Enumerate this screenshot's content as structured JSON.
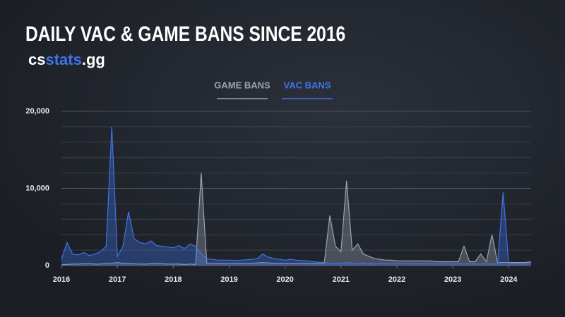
{
  "chart_data": {
    "type": "line",
    "title": "DAILY VAC & GAME BANS SINCE 2016",
    "brand": [
      "cs",
      "stats",
      ".gg"
    ],
    "x": [
      2016,
      2016.1,
      2016.2,
      2016.3,
      2016.4,
      2016.5,
      2016.6,
      2016.7,
      2016.8,
      2016.9,
      2017,
      2017.1,
      2017.2,
      2017.3,
      2017.4,
      2017.5,
      2017.6,
      2017.7,
      2017.8,
      2017.9,
      2018,
      2018.1,
      2018.2,
      2018.3,
      2018.4,
      2018.5,
      2018.6,
      2018.7,
      2018.8,
      2018.9,
      2019,
      2019.1,
      2019.2,
      2019.3,
      2019.4,
      2019.5,
      2019.6,
      2019.7,
      2019.8,
      2019.9,
      2020,
      2020.1,
      2020.2,
      2020.3,
      2020.4,
      2020.5,
      2020.6,
      2020.7,
      2020.8,
      2020.9,
      2021,
      2021.1,
      2021.2,
      2021.3,
      2021.4,
      2021.5,
      2021.6,
      2021.7,
      2021.8,
      2021.9,
      2022,
      2022.1,
      2022.2,
      2022.3,
      2022.4,
      2022.5,
      2022.6,
      2022.7,
      2022.8,
      2022.9,
      2023,
      2023.1,
      2023.2,
      2023.3,
      2023.4,
      2023.5,
      2023.6,
      2023.7,
      2023.8,
      2023.9,
      2024,
      2024.1,
      2024.2,
      2024.3,
      2024.4
    ],
    "series": [
      {
        "name": "GAME BANS",
        "color": "#9aa3b5",
        "values": [
          100,
          150,
          200,
          200,
          250,
          250,
          200,
          200,
          300,
          300,
          400,
          300,
          300,
          250,
          200,
          200,
          250,
          300,
          250,
          200,
          200,
          200,
          150,
          200,
          150,
          12000,
          300,
          300,
          300,
          300,
          300,
          300,
          300,
          300,
          300,
          350,
          400,
          350,
          300,
          300,
          300,
          300,
          300,
          300,
          300,
          300,
          300,
          300,
          6500,
          2500,
          1800,
          11000,
          2000,
          2800,
          1500,
          1200,
          900,
          800,
          700,
          700,
          600,
          600,
          600,
          600,
          600,
          600,
          600,
          500,
          500,
          500,
          500,
          500,
          2500,
          500,
          500,
          1500,
          500,
          4000,
          400,
          400,
          400,
          400,
          400,
          400,
          500
        ]
      },
      {
        "name": "VAC BANS",
        "color": "#3f74e8",
        "values": [
          800,
          3000,
          1500,
          1400,
          1700,
          1300,
          1500,
          1800,
          2500,
          18000,
          1200,
          2500,
          7000,
          3500,
          3000,
          2800,
          3200,
          2600,
          2500,
          2400,
          2300,
          2600,
          2200,
          2800,
          2500,
          1500,
          900,
          800,
          700,
          700,
          700,
          650,
          700,
          750,
          800,
          900,
          1500,
          1100,
          900,
          800,
          700,
          800,
          700,
          650,
          600,
          500,
          450,
          400,
          300,
          300,
          300,
          400,
          300,
          300,
          300,
          250,
          250,
          300,
          250,
          250,
          250,
          250,
          300,
          250,
          250,
          250,
          250,
          200,
          250,
          250,
          200,
          250,
          200,
          250,
          200,
          200,
          250,
          200,
          200,
          9500,
          200,
          250,
          200,
          200,
          300
        ]
      }
    ],
    "xlim": [
      2016,
      2024.4
    ],
    "xticks": [
      2016,
      2017,
      2018,
      2019,
      2020,
      2021,
      2022,
      2023,
      2024
    ],
    "ylim": [
      0,
      20000
    ],
    "yticks": [
      0,
      {
        "value": 10000,
        "label": "10,000"
      },
      {
        "value": 20000,
        "label": "20,000"
      }
    ],
    "minor_yticks": [
      2000,
      4000,
      6000,
      8000,
      12000,
      14000,
      16000,
      18000
    ],
    "grid": true
  }
}
